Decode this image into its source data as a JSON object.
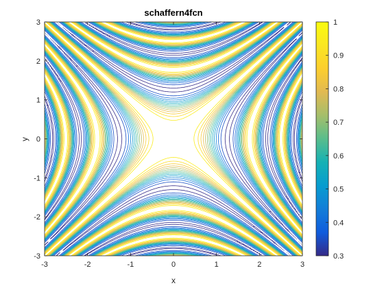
{
  "chart_data": {
    "type": "contour",
    "title": "schaffern4fcn",
    "xlabel": "x",
    "ylabel": "y",
    "xlim": [
      -3,
      3
    ],
    "ylim": [
      -3,
      3
    ],
    "xticks": [
      "-3",
      "-2",
      "-1",
      "0",
      "1",
      "2",
      "3"
    ],
    "yticks": [
      "3",
      "2",
      "1",
      "0",
      "-1",
      "-2",
      "-3"
    ],
    "function": "schaffern4fcn",
    "contour_levels": [
      0.3,
      0.35,
      0.4,
      0.45,
      0.5,
      0.55,
      0.6,
      0.65,
      0.7,
      0.75,
      0.8,
      0.85,
      0.9,
      0.95
    ],
    "colorbar": {
      "range": [
        0.3,
        1
      ],
      "ticks": [
        "1",
        "0.9",
        "0.8",
        "0.7",
        "0.6",
        "0.5",
        "0.4",
        "0.3"
      ],
      "colormap": "parula"
    },
    "grid": false,
    "box": true
  }
}
